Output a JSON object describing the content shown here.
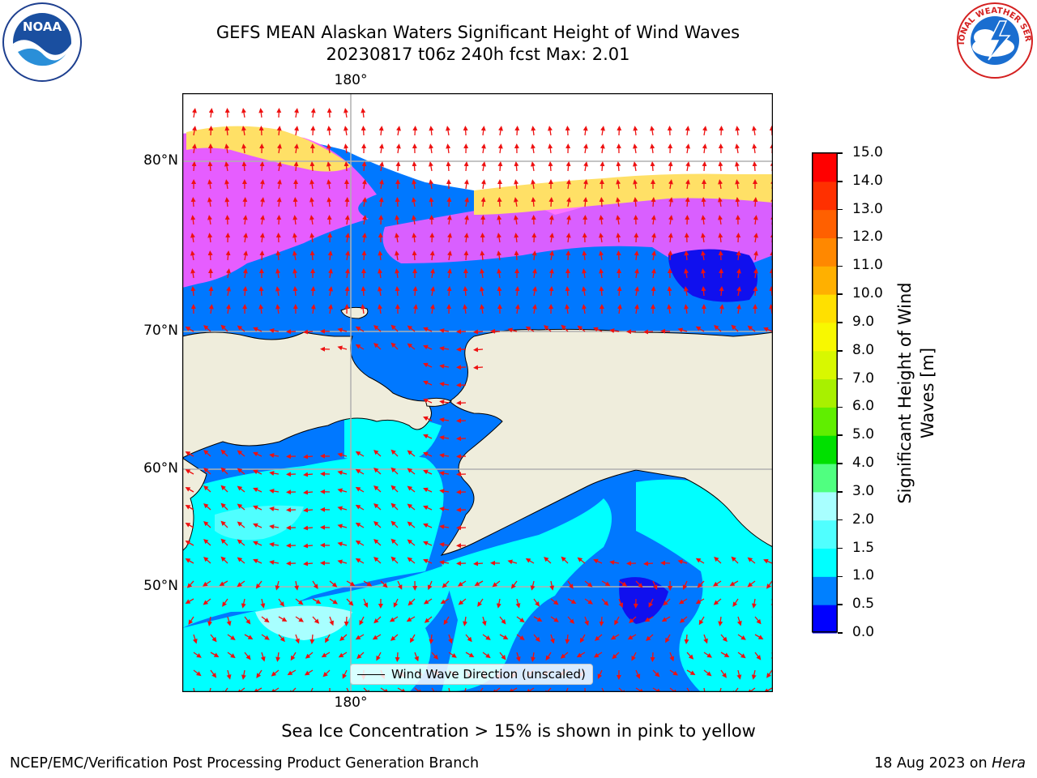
{
  "header": {
    "title_line1": "GEFS MEAN Alaskan Waters Significant Height of Wind Waves",
    "title_line2": "20230817 t06z 240h fcst   Max: 2.01"
  },
  "logos": {
    "noaa": {
      "text": "NOAA",
      "icon": "noaa-logo-icon"
    },
    "nws": {
      "text": "NATIONAL WEATHER SERVICE",
      "icon": "nws-logo-icon"
    }
  },
  "map": {
    "lon_label_top": "180°",
    "lon_label_bottom": "180°",
    "lat_labels": [
      "80°N",
      "70°N",
      "60°N",
      "50°N"
    ],
    "legend_label": "Wind Wave Direction (unscaled)",
    "colors": {
      "land": "#efeddc",
      "ocean_low": "#0078ff",
      "ocean_mid": "#00ffff",
      "ice_pink": "#ff5aff",
      "ice_yellow": "#ffff66",
      "arrows": "#ee1111"
    }
  },
  "colorbar": {
    "label": "Significant Height of Wind Waves [m]",
    "label_line1": "Significant Height of Wind",
    "label_line2": "Waves [m]",
    "ticks": [
      "0.0",
      "0.5",
      "1.0",
      "1.5",
      "2.0",
      "3.0",
      "4.0",
      "5.0",
      "6.0",
      "7.0",
      "8.0",
      "9.0",
      "10.0",
      "11.0",
      "12.0",
      "13.0",
      "14.0",
      "15.0"
    ],
    "colors": [
      "#0000ff",
      "#0080ff",
      "#00ffff",
      "#50ffff",
      "#a8ffff",
      "#50ff80",
      "#00e000",
      "#60ee00",
      "#a8f000",
      "#d8f800",
      "#f8f800",
      "#ffe000",
      "#ffb000",
      "#ff8800",
      "#ff6000",
      "#ff3000",
      "#ff0000"
    ]
  },
  "chart_data": {
    "type": "heatmap",
    "title": "GEFS MEAN Alaskan Waters Significant Height of Wind Waves",
    "subtitle": "20230817 t06z 240h fcst   Max: 2.01",
    "colorbar_label": "Significant Height of Wind Waves [m]",
    "colorbar_range": [
      0.0,
      15.0
    ],
    "colorbar_levels": [
      0.0,
      0.5,
      1.0,
      1.5,
      2.0,
      3.0,
      4.0,
      5.0,
      6.0,
      7.0,
      8.0,
      9.0,
      10.0,
      11.0,
      12.0,
      13.0,
      14.0,
      15.0
    ],
    "max_value": 2.01,
    "lat_gridlines": [
      "80°N",
      "70°N",
      "60°N",
      "50°N"
    ],
    "lon_gridlines": [
      "180°"
    ],
    "grid": true,
    "legend": "Wind Wave Direction (unscaled)"
  },
  "notes": {
    "sea_ice": "Sea Ice Concentration > 15% is shown in pink to yellow"
  },
  "footer": {
    "left": "NCEP/EMC/Verification Post Processing Product Generation Branch",
    "date": "18 Aug 2023 on ",
    "machine": "Hera"
  }
}
